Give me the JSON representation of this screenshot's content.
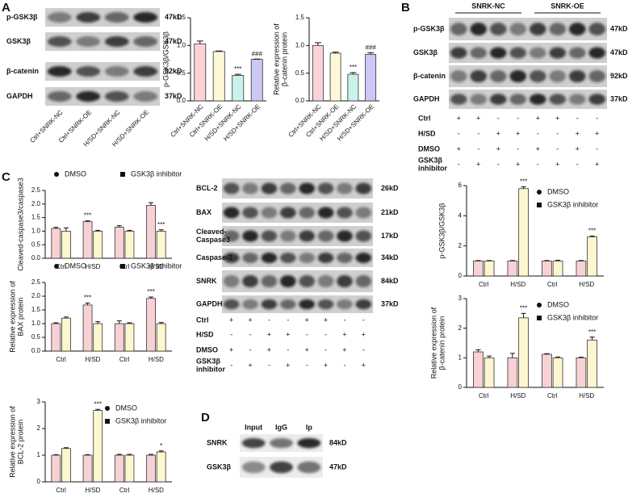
{
  "panels": [
    "A",
    "B",
    "C",
    "D"
  ],
  "blots": [
    {
      "rows": [
        {
          "label": "p-GSK3β",
          "size": "47kD"
        },
        {
          "label": "GSK3β",
          "size": "47kD"
        },
        {
          "label": "β-catenin",
          "size": "92kD"
        },
        {
          "label": "GAPDH",
          "size": "37kD"
        }
      ],
      "lanes": [
        "Ctrl+SNRK-NC",
        "Ctrl+SNRK-OE",
        "H/SD+SNRK-NC",
        "H/SD+SNRK-OE"
      ]
    },
    {
      "groups": [
        "SNRK-NC",
        "SNRK-OE"
      ],
      "rows": [
        {
          "label": "p-GSK3β",
          "size": "47kD"
        },
        {
          "label": "GSK3β",
          "size": "47kD"
        },
        {
          "label": "β-catenin",
          "size": "92kD"
        },
        {
          "label": "GAPDH",
          "size": "37kD"
        }
      ],
      "conditions": [
        {
          "label": "Ctrl",
          "signs": [
            "+",
            "+",
            "-",
            "-",
            "+",
            "+",
            "-",
            "-"
          ]
        },
        {
          "label": "H/SD",
          "signs": [
            "-",
            "-",
            "+",
            "+",
            "-",
            "-",
            "+",
            "+"
          ]
        },
        {
          "label": "DMSO",
          "signs": [
            "+",
            "-",
            "+",
            "-",
            "+",
            "-",
            "+",
            "-"
          ]
        },
        {
          "label": [
            "GSK3β",
            "inhibitor"
          ],
          "signs": [
            "-",
            "+",
            "-",
            "+",
            "-",
            "+",
            "-",
            "+"
          ]
        }
      ]
    },
    {
      "rows": [
        {
          "label": "BCL-2",
          "size": "26kD"
        },
        {
          "label": "BAX",
          "size": "21kD"
        },
        {
          "label": [
            "Cleaved-",
            "Caspase3"
          ],
          "size": "17kD"
        },
        {
          "label": "Caspase-3",
          "size": "34kD"
        },
        {
          "label": "SNRK",
          "size": "84kD"
        },
        {
          "label": "GAPDH",
          "size": "37kD"
        }
      ],
      "conditions": [
        {
          "label": "Ctrl",
          "signs": [
            "+",
            "+",
            "-",
            "-",
            "+",
            "+",
            "-",
            "-"
          ]
        },
        {
          "label": "H/SD",
          "signs": [
            "-",
            "-",
            "+",
            "+",
            "-",
            "-",
            "+",
            "+"
          ]
        },
        {
          "label": "DMSO",
          "signs": [
            "+",
            "-",
            "+",
            "-",
            "+",
            "-",
            "+",
            "-"
          ]
        },
        {
          "label": [
            "GSK3β",
            "inhibitor"
          ],
          "signs": [
            "-",
            "+",
            "-",
            "+",
            "-",
            "+",
            "-",
            "+"
          ]
        }
      ]
    },
    {
      "lanes": [
        "Input",
        "IgG",
        "Ip"
      ],
      "rows": [
        {
          "label": "SNRK",
          "size": "84kD"
        },
        {
          "label": "GSK3β",
          "size": "47kD"
        }
      ]
    }
  ],
  "chart_data": [
    {
      "type": "bar",
      "ylabel": "p-GSK3β/GSK3β",
      "categories": [
        "Ctrl+SNRK-NC",
        "Ctrl+SNRK-OE",
        "H/SD+SNRK-NC",
        "H/SD+SNRK-OE"
      ],
      "values": [
        1.03,
        0.89,
        0.46,
        0.75
      ],
      "errors": [
        0.05,
        0.01,
        0.02,
        0.005
      ],
      "colors": [
        "#fbd3d6",
        "#fdf8d8",
        "#c9f2ea",
        "#cbc8f5"
      ],
      "significance": [
        null,
        null,
        "***",
        "###"
      ],
      "ylim": [
        0,
        1.5
      ],
      "yticks": [
        {
          "value": 0,
          "label": "0.0"
        },
        0.5,
        {
          "value": 1,
          "label": "1.0"
        },
        1.5
      ]
    },
    {
      "type": "bar",
      "ylabel": [
        "Relative expression of",
        "β-catenin protein"
      ],
      "categories": [
        "Ctrl+SNRK-NC",
        "Ctrl+SNRK-OE",
        "H/SD+SNRK-NC",
        "H/SD+SNRK-OE"
      ],
      "values": [
        1.0,
        0.86,
        0.48,
        0.84
      ],
      "errors": [
        0.05,
        0.02,
        0.03,
        0.03
      ],
      "colors": [
        "#fbd3d6",
        "#fdf8d8",
        "#c9f2ea",
        "#cbc8f5"
      ],
      "significance": [
        null,
        null,
        "***",
        "###"
      ],
      "ylim": [
        0,
        1.5
      ],
      "yticks": [
        {
          "value": 0,
          "label": "0.0"
        },
        0.5,
        {
          "value": 1,
          "label": "1.0"
        },
        1.5
      ]
    },
    {
      "type": "grouped_bar",
      "ylabel": "p-GSK3β/GSK3β",
      "legend": "upper right",
      "categories": [
        "Ctrl",
        "H/SD",
        "Ctrl",
        "H/SD"
      ],
      "series": [
        {
          "name": "DMSO",
          "color": "#f7d1d4",
          "marker": "circle",
          "values": [
            1.0,
            1.0,
            1.0,
            1.0
          ],
          "errors": [
            0.03,
            0.03,
            0.03,
            0.03
          ],
          "significance": [
            null,
            null,
            null,
            null
          ]
        },
        {
          "name": "GSK3β inhibitor",
          "color": "#fdf6cf",
          "marker": "square",
          "values": [
            1.0,
            5.8,
            1.0,
            2.6
          ],
          "errors": [
            0.03,
            0.12,
            0.05,
            0.06
          ],
          "significance": [
            null,
            "***",
            null,
            "***"
          ]
        }
      ],
      "ylim": [
        0,
        6
      ],
      "yticks": [
        0,
        2,
        4,
        6
      ]
    },
    {
      "type": "grouped_bar",
      "ylabel": [
        "Relative expression of",
        "β-catenin protein"
      ],
      "legend": "upper right",
      "categories": [
        "Ctrl",
        "H/SD",
        "Ctrl",
        "H/SD"
      ],
      "series": [
        {
          "name": "DMSO",
          "color": "#f7d1d4",
          "marker": "circle",
          "values": [
            1.2,
            1.0,
            1.12,
            1.0
          ],
          "errors": [
            0.07,
            0.15,
            0.02,
            0.02
          ],
          "significance": [
            null,
            null,
            null,
            null
          ]
        },
        {
          "name": "GSK3β inhibitor",
          "color": "#fdf6cf",
          "marker": "square",
          "values": [
            1.0,
            2.35,
            1.0,
            1.6
          ],
          "errors": [
            0.06,
            0.15,
            0.03,
            0.1
          ],
          "significance": [
            null,
            "***",
            null,
            "***"
          ]
        }
      ],
      "ylim": [
        0,
        3
      ],
      "yticks": [
        0,
        1,
        2,
        3
      ]
    },
    {
      "type": "grouped_bar",
      "ylabel": "Cleaved-caspase3/caspase3",
      "legend": "above",
      "categories": [
        "Ctrl",
        "H/SD",
        "Ctrl",
        "H/SD"
      ],
      "series": [
        {
          "name": "DMSO",
          "color": "#f7d1d4",
          "marker": "circle",
          "values": [
            1.1,
            1.35,
            1.15,
            1.95
          ],
          "errors": [
            0.04,
            0.03,
            0.05,
            0.1
          ],
          "significance": [
            null,
            "***",
            null,
            null
          ]
        },
        {
          "name": "GSK3β inhibitor",
          "color": "#fdf6cf",
          "marker": "square",
          "values": [
            1.0,
            1.0,
            1.0,
            1.0
          ],
          "errors": [
            0.12,
            0.03,
            0.03,
            0.05
          ],
          "significance": [
            null,
            null,
            null,
            "***"
          ]
        }
      ],
      "ylim": [
        0,
        2.5
      ],
      "yticks": [
        {
          "value": 0,
          "label": "0.0"
        },
        0.5,
        {
          "value": 1,
          "label": "1.0"
        },
        1.5,
        {
          "value": 2,
          "label": "2.0"
        },
        2.5
      ]
    },
    {
      "type": "grouped_bar",
      "ylabel": [
        "Relative expression of",
        "BAX protein"
      ],
      "legend": "above",
      "categories": [
        "Ctrl",
        "H/SD",
        "Ctrl",
        "H/SD"
      ],
      "series": [
        {
          "name": "DMSO",
          "color": "#f7d1d4",
          "marker": "circle",
          "values": [
            1.0,
            1.68,
            1.0,
            1.92
          ],
          "errors": [
            0.03,
            0.07,
            0.1,
            0.05
          ],
          "significance": [
            null,
            "***",
            null,
            "***"
          ]
        },
        {
          "name": "GSK3β inhibitor",
          "color": "#fdf6cf",
          "marker": "square",
          "values": [
            1.2,
            1.0,
            1.0,
            1.0
          ],
          "errors": [
            0.04,
            0.07,
            0.03,
            0.04
          ],
          "significance": [
            null,
            null,
            null,
            null
          ]
        }
      ],
      "ylim": [
        0,
        2.5
      ],
      "yticks": [
        {
          "value": 0,
          "label": "0.0"
        },
        0.5,
        {
          "value": 1,
          "label": "1.0"
        },
        1.5,
        {
          "value": 2,
          "label": "2.0"
        },
        2.5
      ]
    },
    {
      "type": "grouped_bar",
      "ylabel": [
        "Relative expression of",
        "BCL-2 protein"
      ],
      "legend": "upper right",
      "categories": [
        "Ctrl",
        "H/SD",
        "Ctrl",
        "H/SD"
      ],
      "series": [
        {
          "name": "DMSO",
          "color": "#f7d1d4",
          "marker": "circle",
          "values": [
            1.0,
            1.0,
            1.0,
            1.0
          ],
          "errors": [
            0.02,
            0.02,
            0.03,
            0.03
          ],
          "significance": [
            null,
            null,
            null,
            null
          ]
        },
        {
          "name": "GSK3β inhibitor",
          "color": "#fdf6cf",
          "marker": "square",
          "values": [
            1.25,
            2.68,
            1.0,
            1.12
          ],
          "errors": [
            0.03,
            0.04,
            0.03,
            0.04
          ],
          "significance": [
            null,
            "***",
            null,
            "*"
          ]
        }
      ],
      "ylim": [
        0,
        3
      ],
      "yticks": [
        0,
        1,
        2,
        3
      ]
    }
  ]
}
